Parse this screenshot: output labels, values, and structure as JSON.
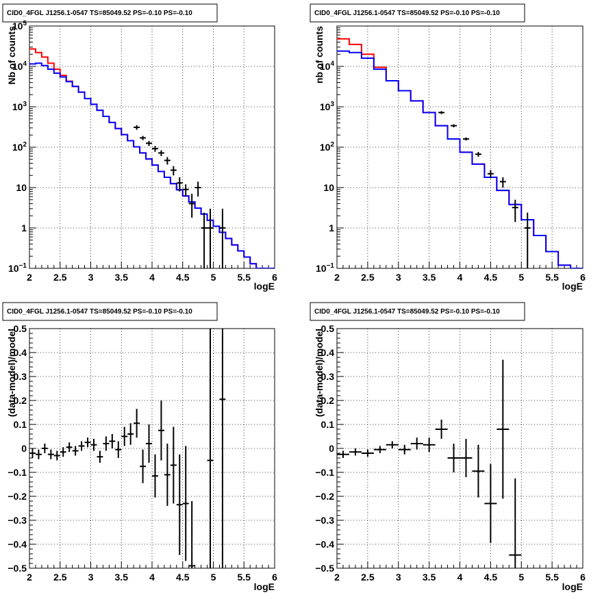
{
  "chart_data": [
    {
      "type": "step-histogram",
      "title": "CID0_4FGL J1256.1-0547 TS=85049.52 PS=-0.10 PS=-0.10",
      "xlabel": "logE",
      "ylabel": "Nb of counts",
      "xlim": [
        2,
        6
      ],
      "ylim": [
        0.1,
        100000
      ],
      "yscale": "log",
      "grid": true,
      "x_ticks": [
        "2",
        "2.5",
        "3",
        "3.5",
        "4",
        "4.5",
        "5",
        "5.5",
        "6"
      ],
      "y_ticks": [
        {
          "v": 0.1,
          "base": "10",
          "exp": "−1"
        },
        {
          "v": 1,
          "label": "1"
        },
        {
          "v": 10,
          "label": "10"
        },
        {
          "v": 100,
          "base": "10",
          "exp": "2"
        },
        {
          "v": 1000,
          "base": "10",
          "exp": "3"
        },
        {
          "v": 10000,
          "base": "10",
          "exp": "4"
        },
        {
          "v": 100000,
          "base": "10",
          "exp": "5"
        }
      ],
      "bin_edges": [
        2.0,
        2.1,
        2.2,
        2.3,
        2.4,
        2.5,
        2.6,
        2.7,
        2.8,
        2.9,
        3.0,
        3.1,
        3.2,
        3.3,
        3.4,
        3.5,
        3.6,
        3.7,
        3.8,
        3.9,
        4.0,
        4.1,
        4.2,
        4.3,
        4.4,
        4.5,
        4.6,
        4.7,
        4.8,
        4.9,
        5.0,
        5.1,
        5.2,
        5.3,
        5.4,
        5.5,
        5.6,
        5.7,
        5.8,
        5.9,
        6.0
      ],
      "series": [
        {
          "name": "",
          "color": "#ff0000",
          "values": [
            27000,
            22000,
            17000,
            12000,
            8500,
            6000,
            4300,
            3200,
            2300,
            1600,
            1150,
            820,
            580,
            410,
            290,
            205,
            145,
            102,
            72,
            51,
            36,
            25,
            18,
            12.5,
            8.8,
            6.2,
            4.4,
            3.1,
            2.2,
            1.55,
            1.1,
            0.78,
            0.55,
            0.38,
            0.27,
            0.19,
            0.13,
            0.1,
            0.1,
            0.1
          ]
        },
        {
          "name": "",
          "color": "#0000ff",
          "values": [
            11500,
            12000,
            10500,
            8500,
            6800,
            5500,
            4200,
            3200,
            2300,
            1600,
            1150,
            820,
            580,
            410,
            290,
            205,
            145,
            102,
            72,
            51,
            36,
            25,
            18,
            12.5,
            8.8,
            6.2,
            4.4,
            3.1,
            2.2,
            1.55,
            1.1,
            0.78,
            0.55,
            0.38,
            0.27,
            0.19,
            0.13,
            0.1,
            0.1,
            0.1
          ]
        }
      ],
      "data_points": [
        {
          "x": 3.75,
          "y": 310,
          "lo": 40,
          "hi": 40
        },
        {
          "x": 3.85,
          "y": 170,
          "lo": 20,
          "hi": 20
        },
        {
          "x": 3.95,
          "y": 125,
          "lo": 18,
          "hi": 18
        },
        {
          "x": 4.05,
          "y": 92,
          "lo": 15,
          "hi": 15
        },
        {
          "x": 4.15,
          "y": 72,
          "lo": 12,
          "hi": 12
        },
        {
          "x": 4.25,
          "y": 47,
          "lo": 10,
          "hi": 10
        },
        {
          "x": 4.35,
          "y": 27,
          "lo": 7,
          "hi": 7
        },
        {
          "x": 4.45,
          "y": 13,
          "lo": 5,
          "hi": 5
        },
        {
          "x": 4.55,
          "y": 9,
          "lo": 3,
          "hi": 3
        },
        {
          "x": 4.65,
          "y": 4,
          "lo": 2.2,
          "hi": 3
        },
        {
          "x": 4.75,
          "y": 10,
          "lo": 4,
          "hi": 4
        },
        {
          "x": 4.85,
          "y": 1,
          "lo": 0.97,
          "hi": 1.4
        },
        {
          "x": 4.95,
          "y": 1,
          "lo": 0.97,
          "hi": 2
        },
        {
          "x": 5.15,
          "y": 1,
          "lo": 0.97,
          "hi": 2
        }
      ]
    },
    {
      "type": "step-histogram",
      "title": "CID0_4FGL J1256.1-0547 TS=85049.52 PS=-0.10 PS=-0.10",
      "xlabel": "logE",
      "ylabel": "nb of counts",
      "xlim": [
        2,
        6
      ],
      "ylim": [
        0.1,
        100000
      ],
      "yscale": "log",
      "grid": true,
      "x_ticks": [
        "2",
        "2.5",
        "3",
        "3.5",
        "4",
        "4.5",
        "5",
        "5.5",
        "6"
      ],
      "y_ticks": [
        {
          "v": 0.1,
          "base": "10",
          "exp": "−1"
        },
        {
          "v": 1,
          "label": "1"
        },
        {
          "v": 10,
          "label": "10"
        },
        {
          "v": 100,
          "base": "10",
          "exp": "2"
        },
        {
          "v": 1000,
          "base": "10",
          "exp": "3"
        },
        {
          "v": 10000,
          "base": "10",
          "exp": "4"
        }
      ],
      "bin_edges": [
        2.0,
        2.2,
        2.4,
        2.6,
        2.8,
        3.0,
        3.2,
        3.4,
        3.6,
        3.8,
        4.0,
        4.2,
        4.4,
        4.6,
        4.8,
        5.0,
        5.2,
        5.4,
        5.6,
        5.8,
        6.0
      ],
      "series": [
        {
          "name": "",
          "color": "#ff0000",
          "values": [
            48000,
            35000,
            20000,
            9500,
            4400,
            2500,
            1400,
            720,
            340,
            160,
            75,
            38,
            18,
            8.5,
            3.8,
            1.6,
            0.65,
            0.26,
            0.12,
            0.1
          ]
        },
        {
          "name": "",
          "color": "#0000ff",
          "values": [
            24000,
            22000,
            16000,
            8500,
            4400,
            2500,
            1400,
            720,
            340,
            160,
            75,
            38,
            18,
            8.5,
            3.8,
            1.6,
            0.65,
            0.26,
            0.12,
            0.1
          ]
        }
      ],
      "data_points": [
        {
          "x": 3.7,
          "y": 720,
          "lo": 60,
          "hi": 60
        },
        {
          "x": 3.9,
          "y": 340,
          "lo": 30,
          "hi": 30
        },
        {
          "x": 4.1,
          "y": 160,
          "lo": 14,
          "hi": 14
        },
        {
          "x": 4.3,
          "y": 67,
          "lo": 9,
          "hi": 9
        },
        {
          "x": 4.5,
          "y": 22,
          "lo": 5,
          "hi": 5
        },
        {
          "x": 4.7,
          "y": 14,
          "lo": 4,
          "hi": 4
        },
        {
          "x": 4.9,
          "y": 3.2,
          "lo": 1.8,
          "hi": 1.8
        },
        {
          "x": 5.1,
          "y": 1,
          "lo": 0.97,
          "hi": 1.4
        }
      ]
    },
    {
      "type": "scatter-errorbars",
      "title": "CID0_4FGL J1256.1-0547 TS=85049.52 PS=-0.10 PS=-0.10",
      "xlabel": "logE",
      "ylabel": "(data-model)/model",
      "xlim": [
        2,
        6
      ],
      "ylim": [
        -0.5,
        0.5
      ],
      "grid": true,
      "x_ticks": [
        "2",
        "2.5",
        "3",
        "3.5",
        "4",
        "4.5",
        "5",
        "5.5",
        "6"
      ],
      "y_ticks": [
        {
          "v": -0.5,
          "label": "−0.5"
        },
        {
          "v": -0.4,
          "label": "−0.4"
        },
        {
          "v": -0.3,
          "label": "−0.3"
        },
        {
          "v": -0.2,
          "label": "−0.2"
        },
        {
          "v": -0.1,
          "label": "−0.1"
        },
        {
          "v": 0,
          "label": "0"
        },
        {
          "v": 0.1,
          "label": "0.1"
        },
        {
          "v": 0.2,
          "label": "0.2"
        },
        {
          "v": 0.3,
          "label": "0.3"
        },
        {
          "v": 0.4,
          "label": "0.4"
        },
        {
          "v": 0.5,
          "label": "0.5"
        }
      ],
      "bin_halfwidth": 0.05,
      "data_points": [
        {
          "x": 2.05,
          "y": -0.02,
          "e": 0.02
        },
        {
          "x": 2.15,
          "y": -0.025,
          "e": 0.02
        },
        {
          "x": 2.25,
          "y": 0,
          "e": 0.02
        },
        {
          "x": 2.35,
          "y": -0.025,
          "e": 0.02
        },
        {
          "x": 2.45,
          "y": -0.03,
          "e": 0.02
        },
        {
          "x": 2.55,
          "y": -0.015,
          "e": 0.02
        },
        {
          "x": 2.65,
          "y": 0.005,
          "e": 0.02
        },
        {
          "x": 2.75,
          "y": -0.01,
          "e": 0.02
        },
        {
          "x": 2.85,
          "y": 0.01,
          "e": 0.02
        },
        {
          "x": 2.95,
          "y": 0.025,
          "e": 0.02
        },
        {
          "x": 3.05,
          "y": 0.015,
          "e": 0.025
        },
        {
          "x": 3.15,
          "y": -0.035,
          "e": 0.025
        },
        {
          "x": 3.25,
          "y": 0.02,
          "e": 0.03
        },
        {
          "x": 3.35,
          "y": 0.03,
          "e": 0.03
        },
        {
          "x": 3.45,
          "y": -0.005,
          "e": 0.035
        },
        {
          "x": 3.55,
          "y": 0.05,
          "e": 0.04
        },
        {
          "x": 3.65,
          "y": 0.06,
          "e": 0.045
        },
        {
          "x": 3.75,
          "y": 0.105,
          "e": 0.06
        },
        {
          "x": 3.85,
          "y": -0.075,
          "e": 0.07
        },
        {
          "x": 3.95,
          "y": 0.02,
          "e": 0.08
        },
        {
          "x": 4.05,
          "y": -0.115,
          "e": 0.09
        },
        {
          "x": 4.15,
          "y": 0.075,
          "e": 0.125
        },
        {
          "x": 4.25,
          "y": -0.11,
          "e": 0.13
        },
        {
          "x": 4.35,
          "y": -0.07,
          "e": 0.16
        },
        {
          "x": 4.45,
          "y": -0.235,
          "e": 0.21
        },
        {
          "x": 4.55,
          "y": -0.23,
          "e": 0.24
        },
        {
          "x": 4.65,
          "y": -0.49,
          "e": 0.27
        },
        {
          "x": 4.95,
          "y": -0.05,
          "e": 0.75
        },
        {
          "x": 5.15,
          "y": 0.205,
          "e": 0.95
        }
      ]
    },
    {
      "type": "scatter-errorbars",
      "title": "CID0_4FGL J1256.1-0547 TS=85049.52 PS=-0.10 PS=-0.10",
      "xlabel": "logE",
      "ylabel": "(data-model)/model",
      "xlim": [
        2,
        6
      ],
      "ylim": [
        -0.5,
        0.5
      ],
      "grid": true,
      "x_ticks": [
        "2",
        "2.5",
        "3",
        "3.5",
        "4",
        "4.5",
        "5",
        "5.5",
        "6"
      ],
      "y_ticks": [
        {
          "v": -0.5,
          "label": "−0.5"
        },
        {
          "v": -0.4,
          "label": "−0.4"
        },
        {
          "v": -0.3,
          "label": "−0.3"
        },
        {
          "v": -0.2,
          "label": "−0.2"
        },
        {
          "v": -0.1,
          "label": "−0.1"
        },
        {
          "v": 0,
          "label": "0"
        },
        {
          "v": 0.1,
          "label": "0.1"
        },
        {
          "v": 0.2,
          "label": "0.2"
        },
        {
          "v": 0.3,
          "label": "0.3"
        },
        {
          "v": 0.4,
          "label": "0.4"
        },
        {
          "v": 0.5,
          "label": "0.5"
        }
      ],
      "bin_halfwidth": 0.1,
      "data_points": [
        {
          "x": 2.1,
          "y": -0.025,
          "e": 0.015
        },
        {
          "x": 2.3,
          "y": -0.015,
          "e": 0.015
        },
        {
          "x": 2.5,
          "y": -0.02,
          "e": 0.015
        },
        {
          "x": 2.7,
          "y": -0.005,
          "e": 0.015
        },
        {
          "x": 2.9,
          "y": 0.015,
          "e": 0.015
        },
        {
          "x": 3.1,
          "y": -0.005,
          "e": 0.02
        },
        {
          "x": 3.3,
          "y": 0.02,
          "e": 0.025
        },
        {
          "x": 3.5,
          "y": 0.015,
          "e": 0.03
        },
        {
          "x": 3.7,
          "y": 0.08,
          "e": 0.04
        },
        {
          "x": 3.9,
          "y": -0.04,
          "e": 0.06
        },
        {
          "x": 4.1,
          "y": -0.04,
          "e": 0.08
        },
        {
          "x": 4.3,
          "y": -0.095,
          "e": 0.11
        },
        {
          "x": 4.5,
          "y": -0.23,
          "e": 0.165
        },
        {
          "x": 4.7,
          "y": 0.08,
          "e": 0.29
        },
        {
          "x": 4.9,
          "y": -0.445,
          "e": 0.32
        }
      ]
    }
  ]
}
